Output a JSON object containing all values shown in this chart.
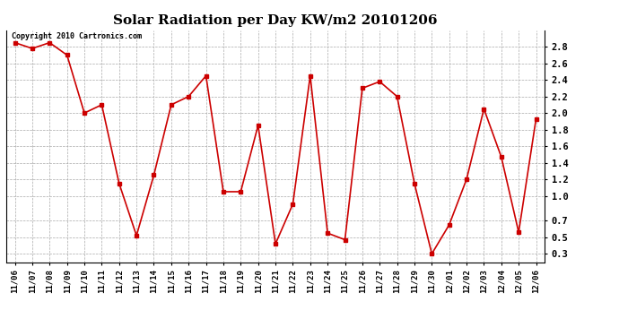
{
  "title": "Solar Radiation per Day KW/m2 20101206",
  "copyright_text": "Copyright 2010 Cartronics.com",
  "labels": [
    "11/06",
    "11/07",
    "11/08",
    "11/09",
    "11/10",
    "11/11",
    "11/12",
    "11/13",
    "11/14",
    "11/15",
    "11/16",
    "11/17",
    "11/18",
    "11/19",
    "11/20",
    "11/21",
    "11/22",
    "11/23",
    "11/24",
    "11/25",
    "11/26",
    "11/27",
    "11/28",
    "11/29",
    "11/30",
    "12/01",
    "12/02",
    "12/03",
    "12/04",
    "12/05",
    "12/06"
  ],
  "values": [
    2.85,
    2.78,
    2.85,
    2.7,
    2.0,
    2.1,
    1.15,
    0.52,
    1.25,
    2.1,
    2.2,
    2.45,
    1.05,
    1.05,
    1.85,
    0.42,
    0.9,
    2.45,
    0.55,
    0.47,
    2.3,
    2.38,
    2.2,
    1.15,
    0.3,
    0.65,
    1.2,
    2.05,
    1.47,
    0.56,
    1.93
  ],
  "line_color": "#cc0000",
  "marker": "s",
  "marker_size": 3,
  "line_width": 1.2,
  "bg_color": "#ffffff",
  "grid_color": "#aaaaaa",
  "ylim": [
    0.2,
    3.0
  ],
  "yticks": [
    0.3,
    0.5,
    0.7,
    1.0,
    1.2,
    1.4,
    1.6,
    1.8,
    2.0,
    2.2,
    2.4,
    2.6,
    2.8
  ],
  "title_fontsize": 11,
  "tick_fontsize": 6.5,
  "copyright_fontsize": 6
}
